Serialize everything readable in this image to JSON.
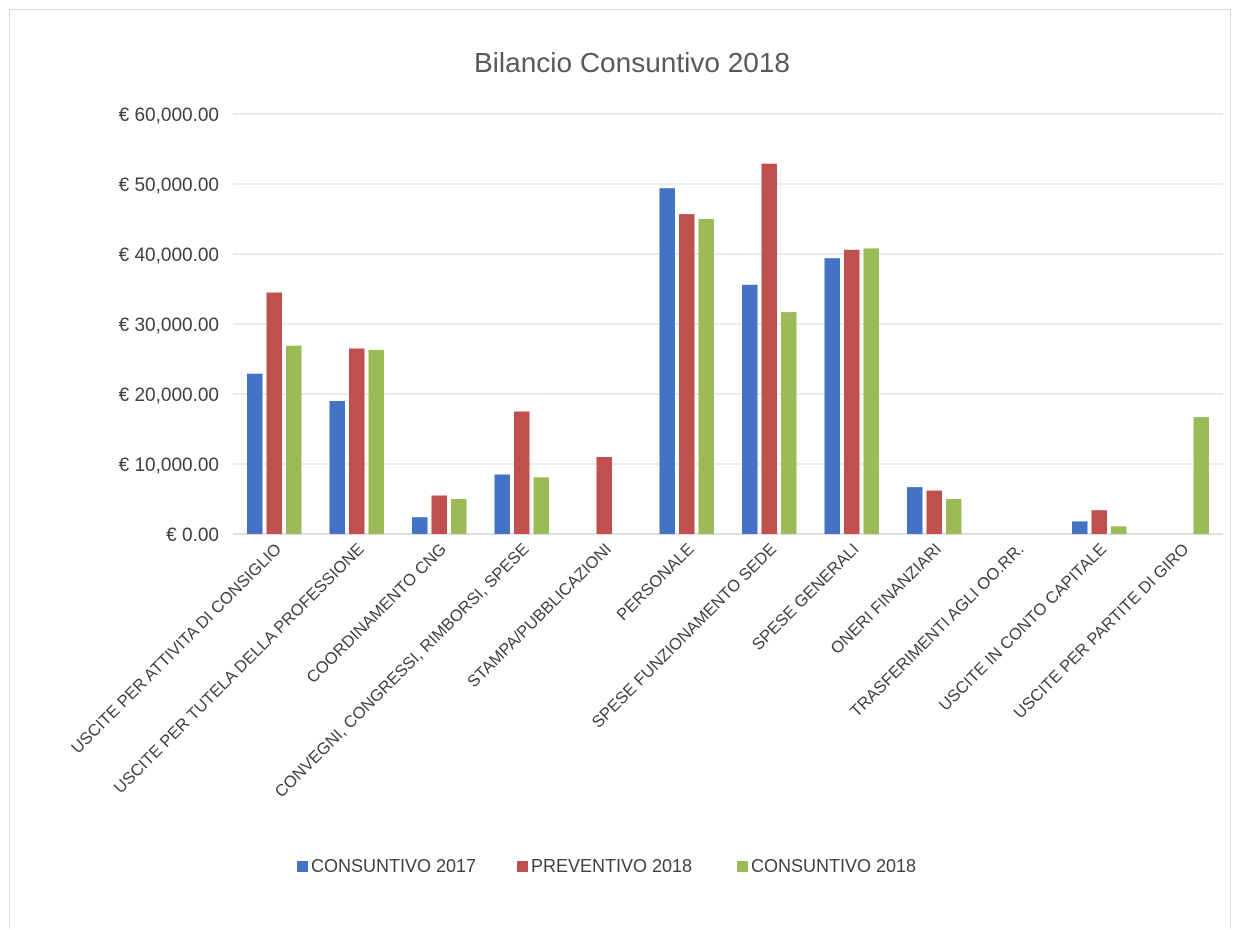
{
  "chart_data": {
    "type": "bar",
    "title": "Bilancio Consuntivo 2018",
    "xlabel": "",
    "ylabel": "",
    "ylim": [
      0,
      60000
    ],
    "y_ticks": [
      0,
      10000,
      20000,
      30000,
      40000,
      50000,
      60000
    ],
    "y_tick_labels": [
      "€ 0.00",
      "€ 10,000.00",
      "€ 20,000.00",
      "€ 30,000.00",
      "€ 40,000.00",
      "€ 50,000.00",
      "€ 60,000.00"
    ],
    "grid": true,
    "legend_position": "bottom",
    "categories": [
      "USCITE PER ATTIVITA DI CONSIGLIO",
      "USCITE PER TUTELA DELLA PROFESSIONE",
      "COORDINAMENTO CNG",
      "CONVEGNI, CONGRESSI, RIMBORSI, SPESE",
      "STAMPA/PUBBLICAZIONI",
      "PERSONALE",
      "SPESE FUNZIONAMENTO SEDE",
      "SPESE GENERALI",
      "ONERI FINANZIARI",
      "TRASFERIMENTI AGLI OO.RR.",
      "USCITE IN CONTO CAPITALE",
      "USCITE PER PARTITE DI GIRO"
    ],
    "series": [
      {
        "name": "CONSUNTIVO 2017",
        "color": "#4472c4",
        "values": [
          22900,
          19000,
          2400,
          8500,
          0,
          49400,
          35600,
          39400,
          6700,
          0,
          1800,
          0
        ]
      },
      {
        "name": "PREVENTIVO 2018",
        "color": "#c0504d",
        "values": [
          34500,
          26500,
          5500,
          17500,
          11000,
          45700,
          52900,
          40600,
          6200,
          0,
          3400,
          0
        ]
      },
      {
        "name": "CONSUNTIVO 2018",
        "color": "#9bbb59",
        "values": [
          26900,
          26300,
          5000,
          8100,
          0,
          45000,
          31700,
          40800,
          5000,
          0,
          1100,
          16700
        ]
      }
    ]
  }
}
